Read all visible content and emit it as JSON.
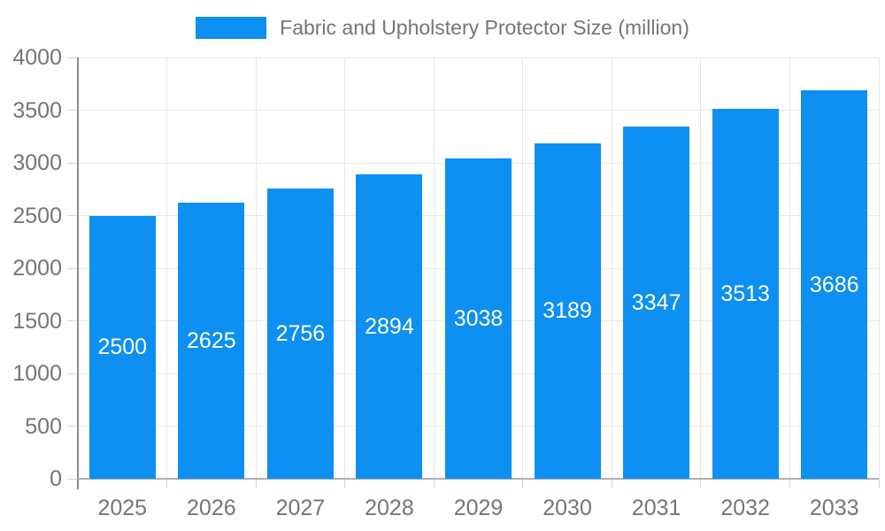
{
  "chart_data": {
    "type": "bar",
    "title": "Fabric and Upholstery Protector Size (million)",
    "series_name": "Fabric and Upholstery Protector Size (million)",
    "categories": [
      "2025",
      "2026",
      "2027",
      "2028",
      "2029",
      "2030",
      "2031",
      "2032",
      "2033"
    ],
    "values": [
      2500,
      2625,
      2756,
      2894,
      3038,
      3189,
      3347,
      3513,
      3686
    ],
    "xlabel": "",
    "ylabel": "",
    "ylim": [
      0,
      4000
    ],
    "ytick_step": 500,
    "yticks": [
      0,
      500,
      1000,
      1500,
      2000,
      2500,
      3000,
      3500,
      4000
    ],
    "grid": true,
    "legend_position": "top-center",
    "value_label_position": "inside-center",
    "colors": {
      "bar": "#0e8ff2",
      "value_label": "#ffffff",
      "axis_text": "#757575",
      "legend_text": "#757575",
      "gridline": "#e6e6e6",
      "y_axis_line": "#8a8a8a",
      "x_axis_line": "#b0b0b0",
      "tick": "#d4d4d4",
      "background": "#ffffff"
    }
  }
}
